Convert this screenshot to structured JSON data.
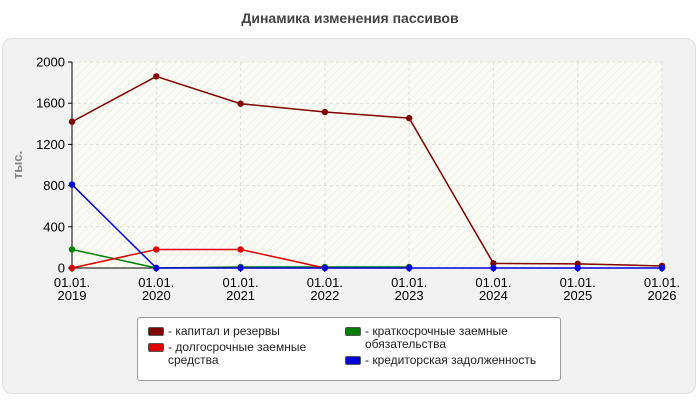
{
  "chart_data": {
    "type": "line",
    "title": "Динамика изменения пассивов",
    "ylabel": "тыс.",
    "xlabel": "",
    "ylim": [
      0,
      2000
    ],
    "y_ticks": [
      0,
      400,
      800,
      1200,
      1600,
      2000
    ],
    "x_tick_labels": [
      [
        "01.01.",
        "2019"
      ],
      [
        "01.01.",
        "2020"
      ],
      [
        "01.01.",
        "2021"
      ],
      [
        "01.01.",
        "2022"
      ],
      [
        "01.01.",
        "2023"
      ],
      [
        "01.01.",
        "2024"
      ],
      [
        "01.01.",
        "2025"
      ],
      [
        "01.01.",
        "2026"
      ]
    ],
    "grid": true,
    "legend_position": "bottom",
    "series": [
      {
        "name": "- капитал и резервы",
        "color": "#800000",
        "values": [
          1420,
          1860,
          1595,
          1515,
          1455,
          45,
          40,
          20
        ]
      },
      {
        "name": "- краткосрочные заемные обязательства",
        "color": "#008000",
        "values": [
          180,
          0,
          10,
          10,
          10,
          null,
          null,
          null
        ]
      },
      {
        "name": "- долгосрочные заемные средства",
        "color": "#e00000",
        "values": [
          0,
          180,
          180,
          0,
          null,
          null,
          null,
          null
        ]
      },
      {
        "name": "- кредиторская задолженность",
        "color": "#0000dd",
        "values": [
          810,
          0,
          0,
          0,
          0,
          0,
          0,
          0
        ]
      }
    ]
  }
}
